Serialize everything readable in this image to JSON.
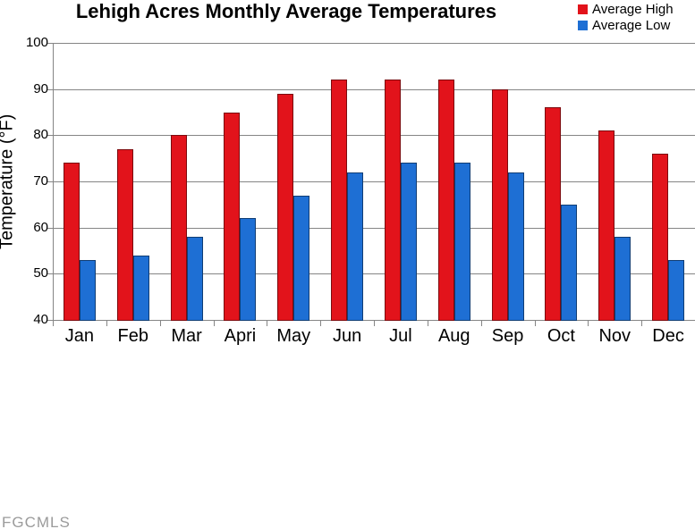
{
  "title": "Lehigh Acres Monthly Average Temperatures",
  "watermark": "FGCMLS",
  "legend": [
    {
      "label": "Average High",
      "color": "#e2131b"
    },
    {
      "label": "Average Low",
      "color": "#1e6fd4"
    }
  ],
  "chart_data": {
    "type": "bar",
    "title": "Lehigh Acres Monthly Average Temperatures",
    "xlabel": "",
    "ylabel": "Temperature (°F)",
    "categories": [
      "Jan",
      "Feb",
      "Mar",
      "Apri",
      "May",
      "Jun",
      "Jul",
      "Aug",
      "Sep",
      "Oct",
      "Nov",
      "Dec"
    ],
    "series": [
      {
        "name": "Average High",
        "color": "#e2131b",
        "values": [
          74,
          77,
          80,
          85,
          89,
          92,
          92,
          92,
          90,
          86,
          81,
          76
        ]
      },
      {
        "name": "Average Low",
        "color": "#1e6fd4",
        "values": [
          53,
          54,
          58,
          62,
          67,
          72,
          74,
          74,
          72,
          65,
          58,
          53
        ]
      }
    ],
    "ylim": [
      40,
      100
    ],
    "yticks": [
      100,
      90,
      80,
      70,
      60,
      50,
      40
    ],
    "grid": true,
    "legend_position": "top-right"
  },
  "colors": {
    "grid": "#858585",
    "axis": "#858585",
    "text": "#000000",
    "watermark": "#9b9b9b",
    "background": "#ffffff"
  }
}
